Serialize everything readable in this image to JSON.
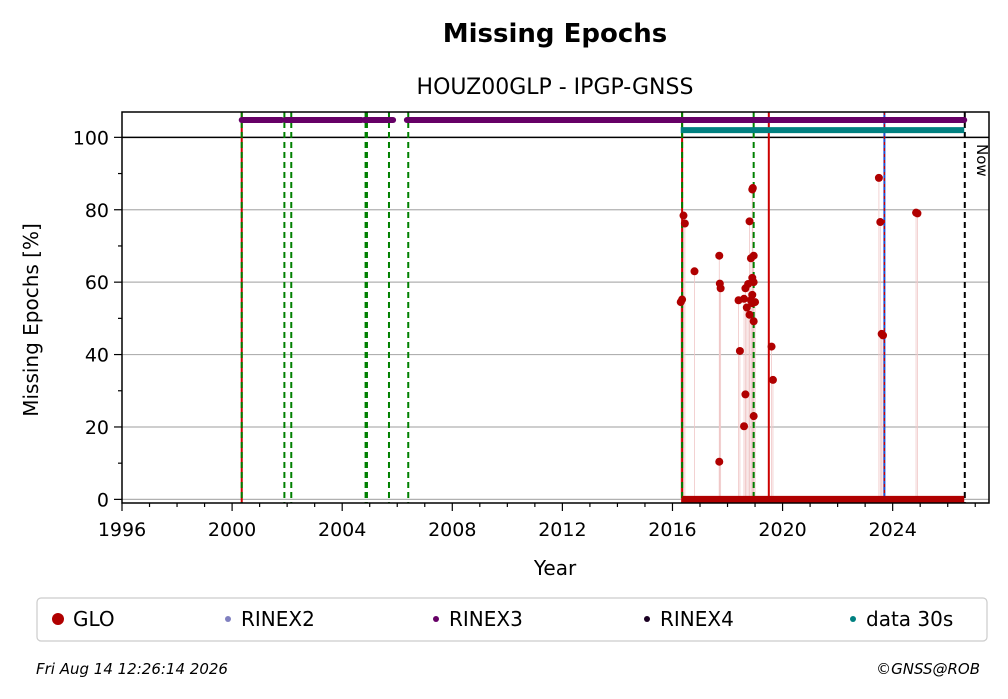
{
  "chart_data": {
    "type": "scatter",
    "title": "Missing Epochs",
    "subtitle": "HOUZ00GLP - IPGP-GNSS",
    "xlabel": "Year",
    "ylabel": "Missing Epochs [%]",
    "xlim": [
      1996,
      2027.5
    ],
    "ylim": [
      -1,
      107
    ],
    "xticks": [
      "1996",
      "2000",
      "2004",
      "2008",
      "2012",
      "2016",
      "2020",
      "2024"
    ],
    "yticks": [
      "0",
      "20",
      "40",
      "60",
      "80",
      "100"
    ],
    "grid": "horizontal",
    "now_label": "Now",
    "now_x": 2026.62,
    "green_dashed_lines": [
      2000.35,
      2001.9,
      2002.15,
      2004.85,
      2004.9,
      2005.7,
      2006.4,
      2016.35,
      2018.95
    ],
    "red_solid_lines": [
      2000.35,
      2016.35,
      2019.5
    ],
    "blue_line": 2023.7,
    "rinex3_bands": [
      [
        2000.35,
        2001.8
      ],
      [
        2001.95,
        2004.7
      ],
      [
        2004.8,
        2005.85
      ],
      [
        2006.35,
        2026.6
      ]
    ],
    "data30s_band": [
      2016.3,
      2026.6
    ],
    "series": [
      {
        "name": "GLO",
        "color": "#b00000",
        "baseline_range": [
          2016.35,
          2026.6
        ],
        "points": [
          [
            2016.3,
            54.5
          ],
          [
            2016.35,
            55.2
          ],
          [
            2016.4,
            78.4
          ],
          [
            2016.45,
            76.2
          ],
          [
            2016.8,
            63.0
          ],
          [
            2017.7,
            67.3
          ],
          [
            2017.72,
            59.6
          ],
          [
            2017.75,
            58.3
          ],
          [
            2017.7,
            10.4
          ],
          [
            2018.4,
            55.0
          ],
          [
            2018.45,
            41.0
          ],
          [
            2018.6,
            20.2
          ],
          [
            2018.65,
            29.0
          ],
          [
            2018.6,
            55.4
          ],
          [
            2018.65,
            58.3
          ],
          [
            2018.7,
            53.0
          ],
          [
            2018.75,
            59.5
          ],
          [
            2018.8,
            51.0
          ],
          [
            2018.85,
            55.0
          ],
          [
            2018.9,
            54.2
          ],
          [
            2018.9,
            56.5
          ],
          [
            2018.95,
            60.0
          ],
          [
            2018.9,
            61.2
          ],
          [
            2018.85,
            66.6
          ],
          [
            2018.95,
            67.3
          ],
          [
            2018.8,
            76.8
          ],
          [
            2018.9,
            85.6
          ],
          [
            2018.92,
            86.0
          ],
          [
            2018.95,
            49.2
          ],
          [
            2018.95,
            23.0
          ],
          [
            2019.0,
            54.5
          ],
          [
            2019.6,
            42.2
          ],
          [
            2019.65,
            33.0
          ],
          [
            2023.5,
            88.8
          ],
          [
            2023.55,
            76.6
          ],
          [
            2023.6,
            45.7
          ],
          [
            2023.65,
            45.3
          ],
          [
            2024.85,
            79.2
          ],
          [
            2024.9,
            79.0
          ]
        ]
      },
      {
        "name": "RINEX2",
        "color": "#8080c0"
      },
      {
        "name": "RINEX3",
        "color": "#660066",
        "y": 104.8
      },
      {
        "name": "RINEX4",
        "color": "#1a0022"
      },
      {
        "name": "data 30s",
        "color": "#008080",
        "y": 102.0
      }
    ]
  },
  "footer": {
    "timestamp": "Fri Aug 14 12:26:14 2026",
    "copyright": "©GNSS@ROB"
  }
}
